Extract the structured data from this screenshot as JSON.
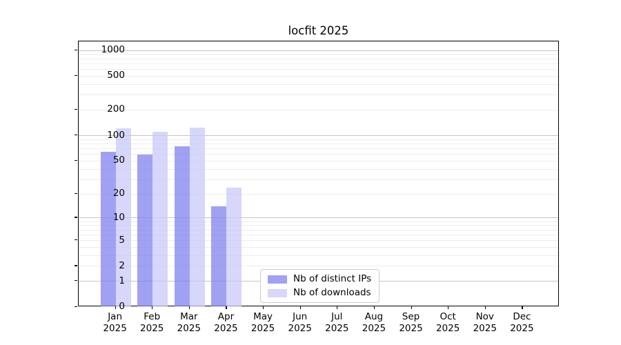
{
  "title": "locfit 2025",
  "chart_data": {
    "type": "bar",
    "title": "locfit 2025",
    "categories": [
      "Jan",
      "Feb",
      "Mar",
      "Apr",
      "May",
      "Jun",
      "Jul",
      "Aug",
      "Sep",
      "Oct",
      "Nov",
      "Dec"
    ],
    "year_label": "2025",
    "series": [
      {
        "name": "Nb of distinct IPs",
        "color": "rgba(125,125,240,0.72)",
        "values": [
          64,
          60,
          75,
          14,
          null,
          null,
          null,
          null,
          null,
          null,
          null,
          null
        ]
      },
      {
        "name": "Nb of downloads",
        "color": "rgba(200,200,250,0.72)",
        "values": [
          122,
          110,
          124,
          24,
          null,
          null,
          null,
          null,
          null,
          null,
          null,
          null
        ]
      }
    ],
    "xlabel": "",
    "ylabel": "",
    "scale": "log1p",
    "ylim": [
      0,
      1275
    ],
    "yticks": [
      0,
      1,
      2,
      5,
      10,
      20,
      50,
      100,
      200,
      500,
      1000
    ],
    "grid_major": [
      1,
      10,
      100,
      1000
    ],
    "grid_minor": [
      2,
      3,
      4,
      5,
      6,
      7,
      8,
      9,
      20,
      30,
      40,
      50,
      60,
      70,
      80,
      90,
      200,
      300,
      400,
      500,
      600,
      700,
      800,
      900
    ],
    "grid": "horizontal",
    "legend_position": "lower center",
    "colors": {
      "frame": "#000000",
      "grid_major": "#c4c4c4",
      "grid_minor": "#ececec"
    }
  }
}
